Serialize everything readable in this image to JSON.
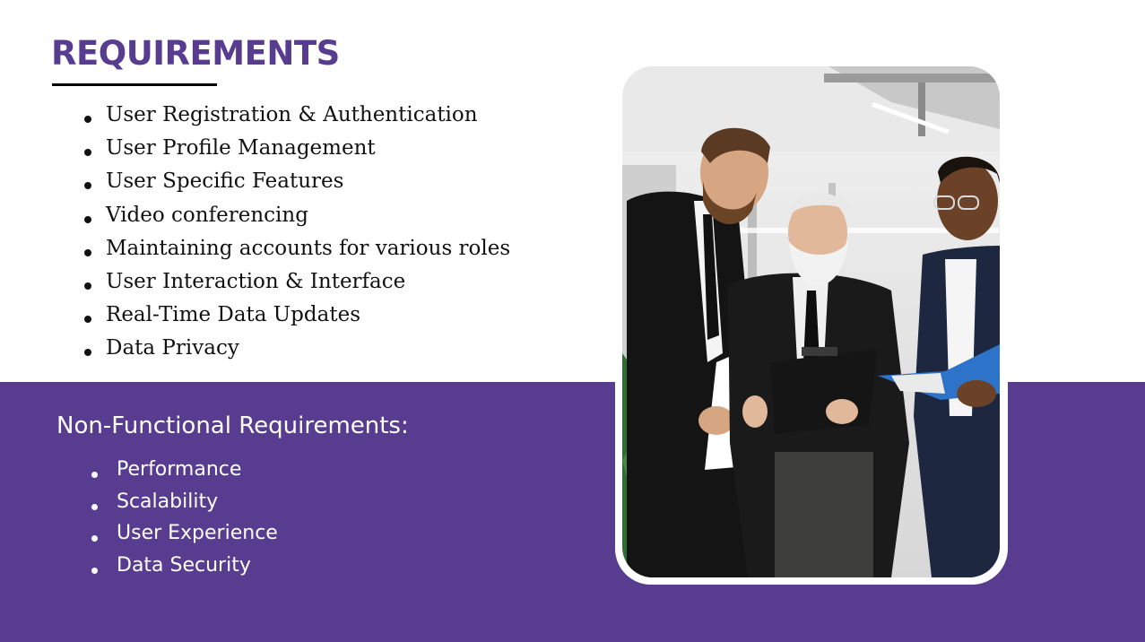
{
  "slide": {
    "title": "REQUIREMENTS",
    "requirements": [
      "User Registration & Authentication",
      "User Profile Management",
      "User Specific Features",
      "Video conferencing",
      "Maintaining accounts for various roles",
      "User Interaction & Interface",
      "Real-Time Data Updates",
      " Data Privacy"
    ],
    "non_functional": {
      "title": "Non-Functional Requirements:",
      "items": [
        "Performance",
        "Scalability",
        "User Experience",
        "Data Security"
      ]
    }
  },
  "colors": {
    "accent": "#573c8f",
    "text": "#111111",
    "on_accent": "#ffffff"
  }
}
